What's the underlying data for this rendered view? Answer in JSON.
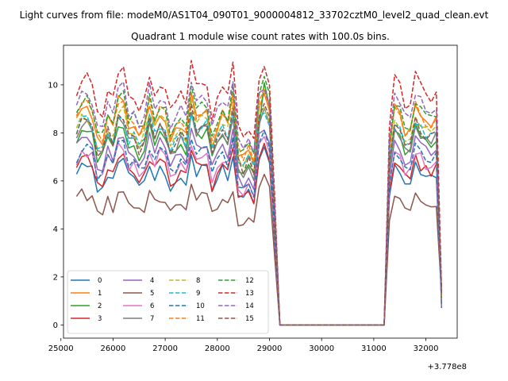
{
  "chart_data": {
    "type": "line",
    "suptitle": "Light curves from file: modeM0/AS1T04_090T01_9000004812_33702cztM0_level2_quad_clean.evt",
    "title": "Quadrant 1 module wise count rates with 100.0s bins.",
    "xlabel": "",
    "ylabel": "",
    "x_offset_text": "+3.778e8",
    "xlim": [
      25050,
      32600
    ],
    "ylim": [
      -0.55,
      11.65
    ],
    "x_ticks": [
      25000,
      26000,
      27000,
      28000,
      29000,
      30000,
      31000,
      32000
    ],
    "y_ticks": [
      0,
      2,
      4,
      6,
      8,
      10
    ],
    "legend_placement": "lower-left",
    "segments": [
      {
        "start": 25300,
        "end": 29100
      },
      {
        "start": 31300,
        "end": 32300
      }
    ],
    "bin_width": 100,
    "series": [
      {
        "name": "0",
        "color": "#1f77b4",
        "dash": "solid",
        "mean": 6.3,
        "peak": 7.5
      },
      {
        "name": "1",
        "color": "#ff7f0e",
        "dash": "solid",
        "mean": 8.5,
        "peak": 9.9
      },
      {
        "name": "2",
        "color": "#2ca02c",
        "dash": "solid",
        "mean": 7.7,
        "peak": 10.1
      },
      {
        "name": "3",
        "color": "#d62728",
        "dash": "solid",
        "mean": 6.5,
        "peak": 7.6
      },
      {
        "name": "4",
        "color": "#9467bd",
        "dash": "solid",
        "mean": 7.3,
        "peak": 8.4
      },
      {
        "name": "5",
        "color": "#8c564b",
        "dash": "solid",
        "mean": 5.1,
        "peak": 6.4
      },
      {
        "name": "6",
        "color": "#e377c2",
        "dash": "solid",
        "mean": 6.8,
        "peak": 8.0
      },
      {
        "name": "7",
        "color": "#7f7f7f",
        "dash": "solid",
        "mean": 7.8,
        "peak": 9.3
      },
      {
        "name": "8",
        "color": "#bcbd22",
        "dash": "dashed",
        "mean": 8.2,
        "peak": 9.4
      },
      {
        "name": "9",
        "color": "#17becf",
        "dash": "dashed",
        "mean": 8.0,
        "peak": 9.2
      },
      {
        "name": "10",
        "color": "#1f77b4",
        "dash": "dashed",
        "mean": 6.9,
        "peak": 8.2
      },
      {
        "name": "11",
        "color": "#ff7f0e",
        "dash": "dashed",
        "mean": 8.6,
        "peak": 9.9
      },
      {
        "name": "12",
        "color": "#2ca02c",
        "dash": "dashed",
        "mean": 8.8,
        "peak": 10.7
      },
      {
        "name": "13",
        "color": "#d62728",
        "dash": "dashed",
        "mean": 9.7,
        "peak": 11.1
      },
      {
        "name": "14",
        "color": "#9467bd",
        "dash": "dashed",
        "mean": 9.1,
        "peak": 10.2
      },
      {
        "name": "15",
        "color": "#8c564b",
        "dash": "dashed",
        "mean": 8.0,
        "peak": 9.6
      }
    ]
  }
}
